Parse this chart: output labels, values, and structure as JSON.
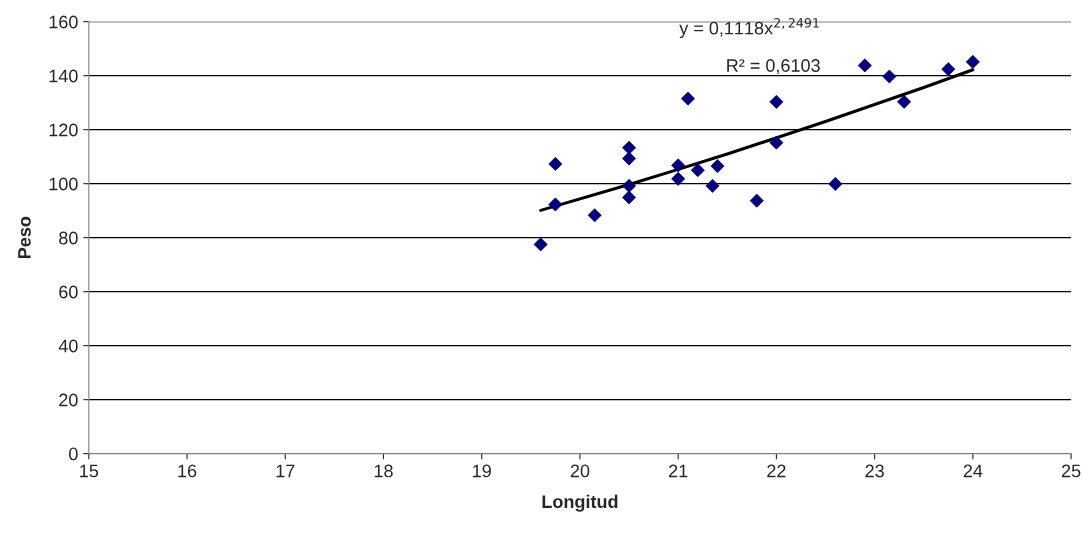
{
  "chart_data": {
    "type": "scatter",
    "xlabel": "Longitud",
    "ylabel": "Peso",
    "xlim": [
      15,
      25
    ],
    "xticks": [
      15,
      16,
      17,
      18,
      19,
      20,
      21,
      22,
      23,
      24,
      25
    ],
    "ylim": [
      0,
      160
    ],
    "yticks": [
      0,
      20,
      40,
      60,
      80,
      100,
      120,
      140,
      160
    ],
    "grid": "y",
    "annotations": [
      "y = 0,1118x$^{2,2491}$",
      "R² = 0,6103"
    ],
    "series": [
      {
        "marker": "diamond",
        "color": "#000080",
        "x": [
          19.6,
          19.75,
          19.75,
          20.15,
          20.5,
          20.5,
          20.5,
          20.5,
          21.0,
          21.0,
          21.1,
          21.2,
          21.4,
          21.35,
          21.8,
          22.0,
          22.0,
          22.6,
          22.9,
          23.15,
          23.3,
          23.75,
          24.0
        ],
        "values": [
          77.5,
          107.3,
          92.3,
          88.3,
          113.3,
          109.3,
          99.2,
          94.9,
          106.8,
          101.8,
          131.5,
          105.0,
          106.5,
          99.2,
          93.7,
          130.3,
          115.2,
          99.9,
          143.8,
          139.7,
          130.3,
          142.4,
          145.1
        ]
      },
      {
        "type": "line",
        "marker": "none",
        "color": "#000000",
        "x": [
          19.6,
          20.5,
          21.0,
          21.5,
          22.5,
          23.5,
          24.0
        ],
        "values": [
          90.1,
          99.7,
          105.3,
          111.0,
          123.0,
          135.6,
          142.2
        ]
      }
    ]
  }
}
